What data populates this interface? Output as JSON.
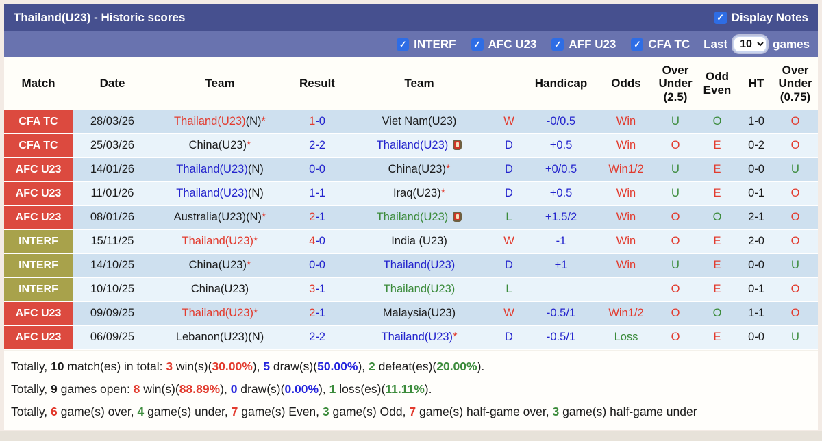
{
  "colors": {
    "titlebar_bg": "#46508f",
    "filterbar_bg": "#6973af",
    "checkbox_blue": "#2e6de5",
    "row_label_red": "#dc4a3f",
    "row_label_olive": "#a8a24b",
    "row_stripe_dark": "#cee0ef",
    "row_stripe_light": "#e9f3fa",
    "text_red": "#e23b2e",
    "text_blue": "#2424cd",
    "text_green": "#3b8b3b"
  },
  "titlebar": {
    "title": "Thailand(U23) - Historic scores",
    "display_notes": {
      "label": "Display Notes",
      "checked": true
    }
  },
  "filterbar": {
    "checkboxes": [
      {
        "label": "INTERF",
        "checked": true
      },
      {
        "label": "AFC U23",
        "checked": true
      },
      {
        "label": "AFF U23",
        "checked": true
      },
      {
        "label": "CFA TC",
        "checked": true
      }
    ],
    "last_label": "Last",
    "selected_games": "10",
    "games_label": "games"
  },
  "table": {
    "columns": [
      "Match",
      "Date",
      "Team",
      "Result",
      "Team",
      "",
      "Handicap",
      "Odds",
      "Over\nUnder\n(2.5)",
      "Odd\nEven",
      "HT",
      "Over\nUnder\n(0.75)"
    ],
    "rows": [
      {
        "match": [
          "CFA TC",
          "redbg"
        ],
        "date": "28/03/26",
        "home": [
          [
            "Thailand(U23)",
            "red"
          ],
          [
            "(N)",
            "black"
          ],
          [
            "*",
            "red"
          ]
        ],
        "result": [
          [
            "1",
            "red"
          ],
          [
            "-0",
            "blue"
          ]
        ],
        "away": [
          [
            "Viet Nam(U23)",
            "black"
          ]
        ],
        "away_icon": false,
        "wdl": [
          "W",
          "red"
        ],
        "handicap": "-0/0.5",
        "odds": [
          "Win",
          "red"
        ],
        "ou25": [
          "U",
          "green"
        ],
        "oe": [
          "O",
          "green"
        ],
        "ht": "1-0",
        "ou075": [
          "O",
          "red"
        ]
      },
      {
        "match": [
          "CFA TC",
          "redbg"
        ],
        "date": "25/03/26",
        "home": [
          [
            "China(U23)",
            "black"
          ],
          [
            "*",
            "red"
          ]
        ],
        "result": [
          [
            "2-2",
            "blue"
          ]
        ],
        "away": [
          [
            "Thailand(U23)",
            "blue"
          ]
        ],
        "away_icon": true,
        "wdl": [
          "D",
          "blue"
        ],
        "handicap": "+0.5",
        "odds": [
          "Win",
          "red"
        ],
        "ou25": [
          "O",
          "red"
        ],
        "oe": [
          "E",
          "red"
        ],
        "ht": "0-2",
        "ou075": [
          "O",
          "red"
        ]
      },
      {
        "match": [
          "AFC U23",
          "redbg"
        ],
        "date": "14/01/26",
        "home": [
          [
            "Thailand(U23)",
            "blue"
          ],
          [
            "(N)",
            "black"
          ]
        ],
        "result": [
          [
            "0-0",
            "blue"
          ]
        ],
        "away": [
          [
            "China(U23)",
            "black"
          ],
          [
            "*",
            "red"
          ]
        ],
        "away_icon": false,
        "wdl": [
          "D",
          "blue"
        ],
        "handicap": "+0/0.5",
        "odds": [
          "Win1/2",
          "red"
        ],
        "ou25": [
          "U",
          "green"
        ],
        "oe": [
          "E",
          "red"
        ],
        "ht": "0-0",
        "ou075": [
          "U",
          "green"
        ]
      },
      {
        "match": [
          "AFC U23",
          "redbg"
        ],
        "date": "11/01/26",
        "home": [
          [
            "Thailand(U23)",
            "blue"
          ],
          [
            "(N)",
            "black"
          ]
        ],
        "result": [
          [
            "1-1",
            "blue"
          ]
        ],
        "away": [
          [
            "Iraq(U23)",
            "black"
          ],
          [
            "*",
            "red"
          ]
        ],
        "away_icon": false,
        "wdl": [
          "D",
          "blue"
        ],
        "handicap": "+0.5",
        "odds": [
          "Win",
          "red"
        ],
        "ou25": [
          "U",
          "green"
        ],
        "oe": [
          "E",
          "red"
        ],
        "ht": "0-1",
        "ou075": [
          "O",
          "red"
        ]
      },
      {
        "match": [
          "AFC U23",
          "redbg"
        ],
        "date": "08/01/26",
        "home": [
          [
            "Australia(U23)(N)",
            "black"
          ],
          [
            "*",
            "red"
          ]
        ],
        "result": [
          [
            "2",
            "red"
          ],
          [
            "-1",
            "blue"
          ]
        ],
        "away": [
          [
            "Thailand(U23)",
            "green"
          ]
        ],
        "away_icon": true,
        "wdl": [
          "L",
          "green"
        ],
        "handicap": "+1.5/2",
        "odds": [
          "Win",
          "red"
        ],
        "ou25": [
          "O",
          "red"
        ],
        "oe": [
          "O",
          "green"
        ],
        "ht": "2-1",
        "ou075": [
          "O",
          "red"
        ]
      },
      {
        "match": [
          "INTERF",
          "olivebg"
        ],
        "date": "15/11/25",
        "home": [
          [
            "Thailand(U23)*",
            "red"
          ]
        ],
        "result": [
          [
            "4",
            "red"
          ],
          [
            "-0",
            "blue"
          ]
        ],
        "away": [
          [
            "India (U23)",
            "black"
          ]
        ],
        "away_icon": false,
        "wdl": [
          "W",
          "red"
        ],
        "handicap": "-1",
        "odds": [
          "Win",
          "red"
        ],
        "ou25": [
          "O",
          "red"
        ],
        "oe": [
          "E",
          "red"
        ],
        "ht": "2-0",
        "ou075": [
          "O",
          "red"
        ]
      },
      {
        "match": [
          "INTERF",
          "olivebg"
        ],
        "date": "14/10/25",
        "home": [
          [
            "China(U23)",
            "black"
          ],
          [
            "*",
            "red"
          ]
        ],
        "result": [
          [
            "0-0",
            "blue"
          ]
        ],
        "away": [
          [
            "Thailand(U23)",
            "blue"
          ]
        ],
        "away_icon": false,
        "wdl": [
          "D",
          "blue"
        ],
        "handicap": "+1",
        "odds": [
          "Win",
          "red"
        ],
        "ou25": [
          "U",
          "green"
        ],
        "oe": [
          "E",
          "red"
        ],
        "ht": "0-0",
        "ou075": [
          "U",
          "green"
        ]
      },
      {
        "match": [
          "INTERF",
          "olivebg"
        ],
        "date": "10/10/25",
        "home": [
          [
            "China(U23)",
            "black"
          ]
        ],
        "result": [
          [
            "3",
            "red"
          ],
          [
            "-1",
            "blue"
          ]
        ],
        "away": [
          [
            "Thailand(U23)",
            "green"
          ]
        ],
        "away_icon": false,
        "wdl": [
          "L",
          "green"
        ],
        "handicap": "",
        "odds": [
          "",
          "black"
        ],
        "ou25": [
          "O",
          "red"
        ],
        "oe": [
          "E",
          "red"
        ],
        "ht": "0-1",
        "ou075": [
          "O",
          "red"
        ]
      },
      {
        "match": [
          "AFC U23",
          "redbg"
        ],
        "date": "09/09/25",
        "home": [
          [
            "Thailand(U23)*",
            "red"
          ]
        ],
        "result": [
          [
            "2",
            "red"
          ],
          [
            "-1",
            "blue"
          ]
        ],
        "away": [
          [
            "Malaysia(U23)",
            "black"
          ]
        ],
        "away_icon": false,
        "wdl": [
          "W",
          "red"
        ],
        "handicap": "-0.5/1",
        "odds": [
          "Win1/2",
          "red"
        ],
        "ou25": [
          "O",
          "red"
        ],
        "oe": [
          "O",
          "green"
        ],
        "ht": "1-1",
        "ou075": [
          "O",
          "red"
        ]
      },
      {
        "match": [
          "AFC U23",
          "redbg"
        ],
        "date": "06/09/25",
        "home": [
          [
            "Lebanon(U23)(N)",
            "black"
          ]
        ],
        "result": [
          [
            "2-2",
            "blue"
          ]
        ],
        "away": [
          [
            "Thailand(U23)",
            "blue"
          ],
          [
            "*",
            "red"
          ]
        ],
        "away_icon": false,
        "wdl": [
          "D",
          "blue"
        ],
        "handicap": "-0.5/1",
        "odds": [
          "Loss",
          "green"
        ],
        "ou25": [
          "O",
          "red"
        ],
        "oe": [
          "E",
          "red"
        ],
        "ht": "0-0",
        "ou075": [
          "U",
          "green"
        ]
      }
    ]
  },
  "summary": {
    "lines": [
      [
        [
          "Totally, ",
          "p"
        ],
        [
          "10",
          "k"
        ],
        [
          " match(es) in total: ",
          "p"
        ],
        [
          "3",
          "r"
        ],
        [
          " win(s)(",
          "p"
        ],
        [
          "30.00%",
          "r"
        ],
        [
          "), ",
          "p"
        ],
        [
          "5",
          "b"
        ],
        [
          " draw(s)(",
          "p"
        ],
        [
          "50.00%",
          "b"
        ],
        [
          "), ",
          "p"
        ],
        [
          "2",
          "g"
        ],
        [
          " defeat(es)(",
          "p"
        ],
        [
          "20.00%",
          "g"
        ],
        [
          ").",
          "p"
        ]
      ],
      [
        [
          "Totally, ",
          "p"
        ],
        [
          "9",
          "k"
        ],
        [
          " games open: ",
          "p"
        ],
        [
          "8",
          "r"
        ],
        [
          " win(s)(",
          "p"
        ],
        [
          "88.89%",
          "r"
        ],
        [
          "), ",
          "p"
        ],
        [
          "0",
          "b"
        ],
        [
          " draw(s)(",
          "p"
        ],
        [
          "0.00%",
          "b"
        ],
        [
          "), ",
          "p"
        ],
        [
          "1",
          "g"
        ],
        [
          " loss(es)(",
          "p"
        ],
        [
          "11.11%",
          "g"
        ],
        [
          ").",
          "p"
        ]
      ],
      [
        [
          "Totally, ",
          "p"
        ],
        [
          "6",
          "r"
        ],
        [
          " game(s) over, ",
          "p"
        ],
        [
          "4",
          "g"
        ],
        [
          " game(s) under, ",
          "p"
        ],
        [
          "7",
          "r"
        ],
        [
          " game(s) Even, ",
          "p"
        ],
        [
          "3",
          "g"
        ],
        [
          " game(s) Odd, ",
          "p"
        ],
        [
          "7",
          "r"
        ],
        [
          " game(s) half-game over, ",
          "p"
        ],
        [
          "3",
          "g"
        ],
        [
          " game(s) half-game under",
          "p"
        ]
      ]
    ]
  }
}
